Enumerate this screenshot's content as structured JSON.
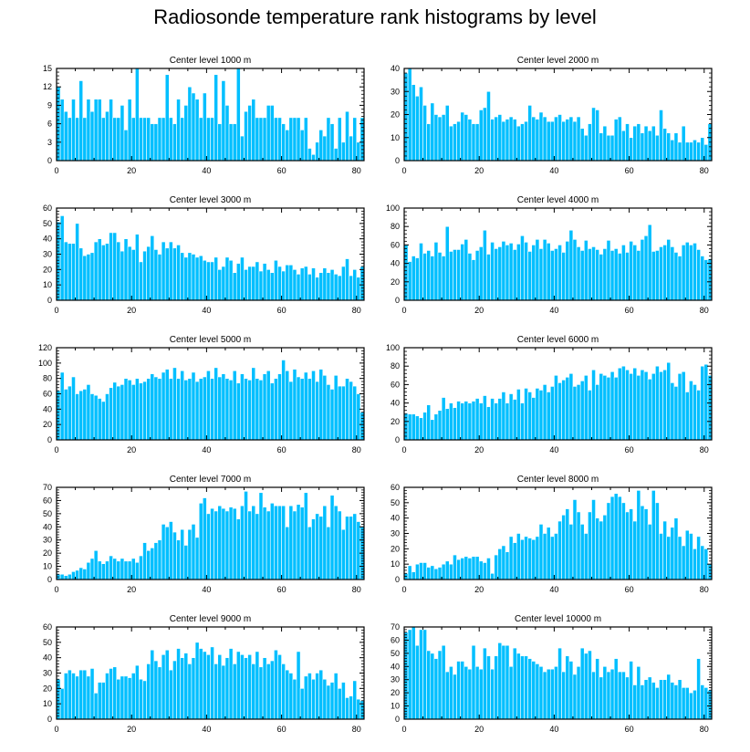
{
  "title": "Radiosonde temperature rank histograms by level",
  "colors": {
    "bar": "#00bfff",
    "bar_edge": "#ffffff",
    "axis": "#000000"
  },
  "chart_data": [
    {
      "type": "bar",
      "title": "Center level 1000 m",
      "xlim": [
        0,
        82
      ],
      "ylim": [
        0,
        15
      ],
      "xticks": [
        0,
        20,
        40,
        60,
        80
      ],
      "yticks": [
        0,
        3,
        6,
        9,
        12,
        15
      ],
      "x_start": 0,
      "values": [
        12,
        10,
        8,
        7,
        10,
        7,
        13,
        7,
        10,
        8,
        10,
        10,
        7,
        8,
        10,
        7,
        7,
        9,
        5,
        10,
        7,
        15,
        7,
        7,
        7,
        6,
        6,
        7,
        7,
        14,
        7,
        6,
        10,
        7,
        9,
        12,
        11,
        10,
        7,
        11,
        7,
        7,
        14,
        6,
        13,
        9,
        6,
        6,
        15,
        4,
        8,
        9,
        10,
        7,
        7,
        7,
        9,
        9,
        7,
        7,
        6,
        5,
        7,
        7,
        7,
        5,
        7,
        2,
        1,
        3,
        5,
        4,
        7,
        6,
        2,
        7,
        3,
        8,
        4,
        7,
        3,
        7,
        3
      ]
    },
    {
      "type": "bar",
      "title": "Center level 2000 m",
      "xlim": [
        0,
        82
      ],
      "ylim": [
        0,
        40
      ],
      "xticks": [
        0,
        20,
        40,
        60,
        80
      ],
      "yticks": [
        0,
        10,
        20,
        30,
        40
      ],
      "x_start": 0,
      "values": [
        38,
        40,
        33,
        28,
        32,
        24,
        16,
        25,
        20,
        19,
        20,
        24,
        15,
        16,
        17,
        21,
        20,
        18,
        16,
        16,
        22,
        23,
        30,
        18,
        19,
        20,
        17,
        18,
        19,
        18,
        15,
        16,
        17,
        24,
        19,
        18,
        21,
        19,
        17,
        17,
        19,
        20,
        17,
        18,
        19,
        17,
        19,
        14,
        11,
        16,
        23,
        22,
        12,
        15,
        11,
        11,
        18,
        19,
        13,
        16,
        10,
        15,
        16,
        12,
        15,
        13,
        15,
        11,
        22,
        14,
        12,
        9,
        12,
        8,
        15,
        8,
        8,
        9,
        8,
        10,
        7,
        16,
        15,
        10
      ]
    },
    {
      "type": "bar",
      "title": "Center level 3000 m",
      "xlim": [
        0,
        82
      ],
      "ylim": [
        0,
        60
      ],
      "xticks": [
        0,
        20,
        40,
        60,
        80
      ],
      "yticks": [
        0,
        10,
        20,
        30,
        40,
        50,
        60
      ],
      "x_start": 0,
      "values": [
        51,
        55,
        38,
        37,
        37,
        50,
        34,
        29,
        30,
        31,
        38,
        40,
        36,
        37,
        44,
        44,
        38,
        32,
        40,
        35,
        33,
        43,
        25,
        32,
        35,
        42,
        33,
        30,
        38,
        34,
        38,
        34,
        36,
        31,
        28,
        31,
        30,
        28,
        29,
        26,
        25,
        25,
        28,
        20,
        22,
        28,
        26,
        18,
        24,
        28,
        20,
        22,
        22,
        25,
        19,
        24,
        20,
        18,
        26,
        22,
        19,
        23,
        23,
        20,
        17,
        21,
        22,
        17,
        21,
        15,
        18,
        21,
        18,
        20,
        17,
        16,
        22,
        27,
        16,
        20,
        15,
        22,
        23,
        17
      ]
    },
    {
      "type": "bar",
      "title": "Center level 4000 m",
      "xlim": [
        0,
        82
      ],
      "ylim": [
        0,
        100
      ],
      "xticks": [
        0,
        20,
        40,
        60,
        80
      ],
      "yticks": [
        0,
        20,
        40,
        60,
        80,
        100
      ],
      "x_start": 0,
      "values": [
        60,
        42,
        48,
        46,
        62,
        51,
        54,
        48,
        63,
        52,
        48,
        80,
        53,
        55,
        55,
        61,
        66,
        51,
        44,
        54,
        58,
        76,
        50,
        63,
        56,
        58,
        64,
        60,
        62,
        55,
        61,
        70,
        63,
        53,
        60,
        66,
        56,
        66,
        62,
        54,
        56,
        60,
        52,
        64,
        76,
        66,
        58,
        54,
        65,
        56,
        58,
        55,
        50,
        56,
        65,
        54,
        56,
        51,
        60,
        52,
        64,
        60,
        54,
        66,
        70,
        82,
        53,
        54,
        58,
        60,
        66,
        58,
        52,
        48,
        60,
        63,
        60,
        62,
        55,
        48,
        44,
        45
      ]
    },
    {
      "type": "bar",
      "title": "Center level 5000 m",
      "xlim": [
        0,
        82
      ],
      "ylim": [
        0,
        120
      ],
      "xticks": [
        0,
        20,
        40,
        60,
        80
      ],
      "yticks": [
        0,
        20,
        40,
        60,
        80,
        100,
        120
      ],
      "x_start": 0,
      "values": [
        64,
        88,
        66,
        70,
        82,
        60,
        64,
        66,
        72,
        60,
        58,
        54,
        50,
        60,
        68,
        75,
        70,
        72,
        80,
        78,
        72,
        80,
        74,
        76,
        80,
        86,
        82,
        80,
        88,
        92,
        80,
        94,
        80,
        90,
        78,
        80,
        88,
        76,
        80,
        82,
        90,
        80,
        94,
        82,
        86,
        80,
        78,
        90,
        74,
        86,
        80,
        78,
        94,
        80,
        78,
        86,
        90,
        74,
        80,
        86,
        104,
        90,
        76,
        92,
        82,
        80,
        88,
        80,
        90,
        76,
        92,
        84,
        72,
        66,
        84,
        70,
        70,
        80,
        76,
        70,
        60,
        36
      ]
    },
    {
      "type": "bar",
      "title": "Center level 6000 m",
      "xlim": [
        0,
        82
      ],
      "ylim": [
        0,
        100
      ],
      "xticks": [
        0,
        20,
        40,
        60,
        80
      ],
      "yticks": [
        0,
        20,
        40,
        60,
        80,
        100
      ],
      "x_start": 0,
      "values": [
        29,
        28,
        28,
        26,
        24,
        30,
        38,
        22,
        28,
        32,
        46,
        34,
        40,
        35,
        42,
        40,
        42,
        40,
        42,
        45,
        40,
        48,
        36,
        45,
        40,
        45,
        52,
        40,
        50,
        44,
        55,
        40,
        56,
        52,
        46,
        56,
        54,
        60,
        52,
        58,
        70,
        62,
        65,
        68,
        72,
        58,
        60,
        64,
        70,
        54,
        76,
        60,
        72,
        70,
        68,
        74,
        68,
        78,
        80,
        76,
        72,
        78,
        70,
        76,
        74,
        66,
        72,
        80,
        74,
        76,
        84,
        62,
        58,
        72,
        74,
        52,
        64,
        60,
        54,
        80,
        82,
        70
      ]
    },
    {
      "type": "bar",
      "title": "Center level 7000 m",
      "xlim": [
        0,
        82
      ],
      "ylim": [
        0,
        70
      ],
      "xticks": [
        0,
        20,
        40,
        60,
        80
      ],
      "yticks": [
        0,
        10,
        20,
        30,
        40,
        50,
        60,
        70
      ],
      "x_start": 0,
      "values": [
        4,
        4,
        3,
        4,
        6,
        7,
        9,
        8,
        13,
        16,
        22,
        14,
        12,
        14,
        18,
        16,
        14,
        16,
        14,
        14,
        16,
        13,
        18,
        28,
        22,
        24,
        28,
        30,
        42,
        40,
        44,
        36,
        30,
        38,
        26,
        38,
        42,
        32,
        58,
        62,
        50,
        54,
        52,
        56,
        54,
        52,
        55,
        54,
        46,
        56,
        67,
        52,
        56,
        50,
        66,
        55,
        52,
        58,
        56,
        56,
        56,
        40,
        56,
        52,
        57,
        55,
        66,
        40,
        46,
        50,
        48,
        56,
        40,
        64,
        56,
        52,
        38,
        48,
        48,
        50,
        44,
        40
      ]
    },
    {
      "type": "bar",
      "title": "Center level 8000 m",
      "xlim": [
        0,
        82
      ],
      "ylim": [
        0,
        60
      ],
      "xticks": [
        0,
        20,
        40,
        60,
        80
      ],
      "yticks": [
        0,
        10,
        20,
        30,
        40,
        50,
        60
      ],
      "x_start": 0,
      "values": [
        4,
        9,
        5,
        10,
        11,
        11,
        8,
        9,
        7,
        8,
        10,
        12,
        10,
        16,
        13,
        14,
        15,
        14,
        15,
        15,
        12,
        11,
        14,
        4,
        16,
        20,
        22,
        18,
        28,
        24,
        30,
        26,
        28,
        27,
        26,
        28,
        36,
        30,
        34,
        28,
        30,
        38,
        42,
        46,
        36,
        52,
        44,
        36,
        30,
        44,
        52,
        40,
        38,
        42,
        50,
        54,
        56,
        54,
        50,
        44,
        46,
        38,
        58,
        48,
        46,
        36,
        58,
        50,
        30,
        38,
        28,
        34,
        40,
        28,
        22,
        32,
        30,
        20,
        28,
        22,
        20,
        10,
        20
      ]
    },
    {
      "type": "bar",
      "title": "Center level 9000 m",
      "xlim": [
        0,
        82
      ],
      "ylim": [
        0,
        60
      ],
      "xticks": [
        0,
        20,
        40,
        60,
        80
      ],
      "yticks": [
        0,
        10,
        20,
        30,
        40,
        50,
        60
      ],
      "x_start": 0,
      "values": [
        26,
        20,
        30,
        32,
        30,
        28,
        32,
        32,
        28,
        33,
        17,
        24,
        24,
        30,
        33,
        34,
        26,
        28,
        28,
        27,
        30,
        35,
        26,
        25,
        36,
        45,
        38,
        34,
        42,
        45,
        32,
        38,
        46,
        40,
        43,
        36,
        40,
        50,
        46,
        44,
        42,
        47,
        36,
        42,
        35,
        40,
        46,
        36,
        44,
        42,
        40,
        42,
        36,
        44,
        34,
        40,
        36,
        38,
        45,
        42,
        36,
        32,
        30,
        26,
        44,
        20,
        28,
        30,
        26,
        30,
        32,
        26,
        22,
        24,
        30,
        20,
        24,
        14,
        15,
        25,
        13,
        12
      ]
    },
    {
      "type": "bar",
      "title": "Center level 10000 m",
      "xlim": [
        0,
        82
      ],
      "ylim": [
        0,
        70
      ],
      "xticks": [
        0,
        20,
        40,
        60,
        80
      ],
      "yticks": [
        0,
        10,
        20,
        30,
        40,
        50,
        60,
        70
      ],
      "x_start": 0,
      "values": [
        66,
        68,
        70,
        56,
        68,
        68,
        52,
        50,
        46,
        52,
        56,
        36,
        40,
        34,
        44,
        44,
        40,
        38,
        56,
        40,
        38,
        54,
        48,
        38,
        48,
        58,
        56,
        56,
        40,
        54,
        50,
        48,
        48,
        46,
        44,
        42,
        40,
        36,
        38,
        38,
        40,
        54,
        36,
        48,
        44,
        34,
        40,
        54,
        50,
        52,
        36,
        46,
        32,
        40,
        36,
        38,
        46,
        36,
        36,
        32,
        44,
        26,
        40,
        26,
        30,
        32,
        28,
        24,
        30,
        30,
        34,
        28,
        26,
        30,
        24,
        24,
        20,
        22,
        46,
        26,
        24,
        22
      ]
    }
  ]
}
